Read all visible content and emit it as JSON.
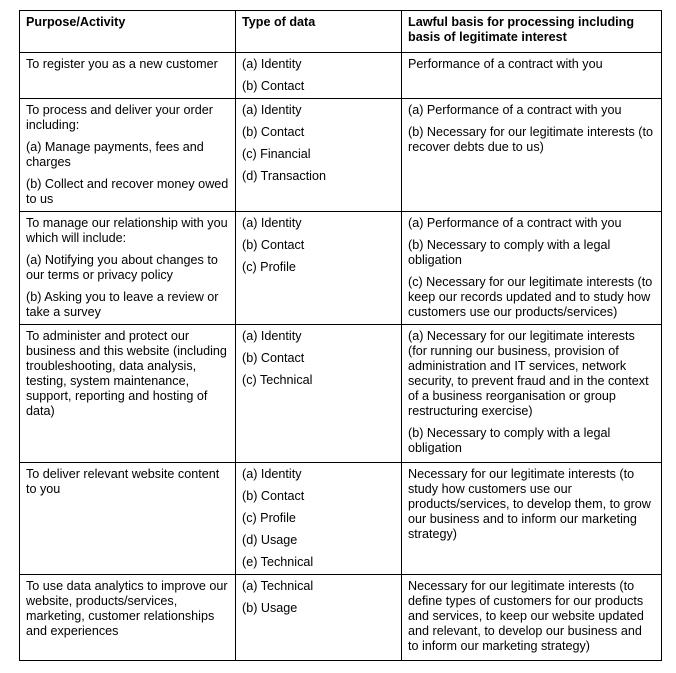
{
  "headers": [
    "Purpose/Activity",
    "Type of data",
    "Lawful basis for processing including basis of legitimate interest"
  ],
  "rows": [
    {
      "purpose": [
        "To register you as a new customer"
      ],
      "types": [
        "(a) Identity",
        "(b) Contact"
      ],
      "basis": [
        "Performance of a contract with you"
      ]
    },
    {
      "purpose": [
        "To process and deliver your order including:",
        "(a) Manage payments, fees and charges",
        "(b) Collect and recover money owed to us"
      ],
      "types": [
        "(a) Identity",
        "(b) Contact",
        "(c) Financial",
        "(d) Transaction"
      ],
      "basis": [
        "(a) Performance of a contract with you",
        "(b) Necessary for our legitimate interests (to recover debts due to us)"
      ]
    },
    {
      "purpose": [
        "To manage our relationship with you which will include:",
        "(a) Notifying you about changes to our terms or privacy policy",
        "(b) Asking you to leave a review or take a survey"
      ],
      "types": [
        "(a) Identity",
        "(b) Contact",
        "(c) Profile"
      ],
      "basis": [
        "(a) Performance of a contract with you",
        "(b) Necessary to comply with a legal obligation",
        "(c) Necessary for our legitimate interests (to keep our records updated and to study how customers use our products/services)"
      ]
    },
    {
      "purpose": [
        "To administer and protect our business and this website (including troubleshooting, data analysis, testing, system maintenance, support, reporting and hosting of data)"
      ],
      "types": [
        "(a) Identity",
        "(b) Contact",
        "(c) Technical"
      ],
      "basis": [
        "(a) Necessary for our legitimate interests (for running our business, provision of administration and IT services, network security, to prevent fraud and in the context of a business reorganisation or group restructuring exercise)",
        "(b) Necessary to comply with a legal obligation"
      ]
    },
    {
      "purpose": [
        "To deliver relevant website content to you"
      ],
      "types": [
        "(a) Identity",
        "(b) Contact",
        "(c) Profile",
        "(d) Usage",
        "(e) Technical"
      ],
      "basis": [
        "Necessary for our legitimate interests (to study how customers use our products/services, to develop them, to grow our business and to inform our marketing strategy)"
      ]
    },
    {
      "purpose": [
        "To use data analytics to improve our website, products/services, marketing, customer relationships and experiences"
      ],
      "types": [
        "(a) Technical",
        "(b) Usage"
      ],
      "basis": [
        "Necessary for our legitimate interests (to define types of customers for our products and services, to keep our website updated and relevant, to develop our business and to inform our marketing strategy)"
      ]
    }
  ]
}
